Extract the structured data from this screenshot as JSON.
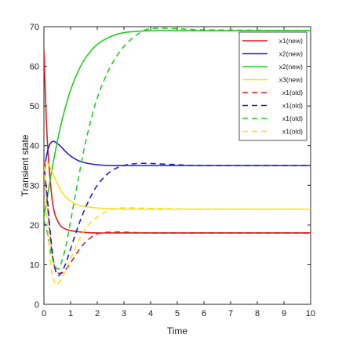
{
  "chart_data": {
    "type": "line",
    "title": "",
    "xlabel": "Time",
    "ylabel": "Transient state",
    "xlim": [
      0,
      10
    ],
    "ylim": [
      0,
      70
    ],
    "xticks": [
      "0",
      "1",
      "2",
      "3",
      "4",
      "5",
      "6",
      "7",
      "8",
      "9",
      "10"
    ],
    "yticks": [
      "0",
      "10",
      "20",
      "30",
      "40",
      "50",
      "60",
      "70"
    ],
    "grid": false,
    "legend_position": "top-right",
    "series": [
      {
        "name": "x1(new)",
        "color": "#e41a1c",
        "dash": "solid",
        "x": [
          0,
          0.1,
          0.2,
          0.3,
          0.4,
          0.6,
          0.8,
          1.0,
          1.3,
          1.6,
          2.0,
          2.5,
          3.0,
          4.0,
          6.0,
          10.0
        ],
        "y": [
          64,
          45,
          34,
          27,
          23,
          20,
          19,
          18.6,
          18.3,
          18.1,
          18.0,
          18.0,
          18.0,
          18.0,
          18.0,
          18.0
        ]
      },
      {
        "name": "x2(new)",
        "color": "#1f1fd0",
        "dash": "solid",
        "x": [
          0,
          0.1,
          0.2,
          0.3,
          0.4,
          0.6,
          0.8,
          1.0,
          1.3,
          1.6,
          2.0,
          2.5,
          3.0,
          4.0,
          6.0,
          10.0
        ],
        "y": [
          33,
          37.5,
          40,
          41,
          41,
          40,
          38.6,
          37.4,
          36.2,
          35.6,
          35.2,
          35.0,
          35.0,
          35.0,
          35.0,
          35.0
        ]
      },
      {
        "name": "x2(new)",
        "color": "#22cc22",
        "dash": "solid",
        "x": [
          0,
          0.1,
          0.2,
          0.3,
          0.5,
          0.7,
          1.0,
          1.3,
          1.6,
          2.0,
          2.5,
          3.0,
          3.5,
          4.0,
          5.0,
          10.0
        ],
        "y": [
          22,
          26,
          30,
          34,
          41,
          47,
          54,
          59,
          62.5,
          65.5,
          67.5,
          68.5,
          68.8,
          69.0,
          69.0,
          69.0
        ]
      },
      {
        "name": "x3(new)",
        "color": "#f5e11d",
        "dash": "solid",
        "x": [
          0,
          0.1,
          0.2,
          0.3,
          0.5,
          0.7,
          1.0,
          1.3,
          1.6,
          2.0,
          2.5,
          3.0,
          4.0,
          6.0,
          10.0
        ],
        "y": [
          35,
          36,
          35,
          33.5,
          30.5,
          28,
          26,
          25,
          24.6,
          24.3,
          24.1,
          24.0,
          24.0,
          24.0,
          24.0
        ]
      },
      {
        "name": "x1(old)",
        "color": "#e41a1c",
        "dash": "dashed",
        "x": [
          0,
          0.1,
          0.2,
          0.3,
          0.4,
          0.5,
          0.7,
          0.9,
          1.1,
          1.4,
          1.7,
          2.0,
          2.5,
          3.0,
          4.0,
          6.0,
          10.0
        ],
        "y": [
          36,
          28,
          20,
          13,
          9.5,
          8,
          8,
          9.5,
          11.5,
          14.5,
          16.5,
          17.8,
          18.2,
          18.2,
          18.0,
          18.0,
          18.0
        ]
      },
      {
        "name": "x1(old)",
        "color": "#1f1fd0",
        "dash": "dashed",
        "x": [
          0,
          0.1,
          0.2,
          0.3,
          0.4,
          0.5,
          0.6,
          0.8,
          1.0,
          1.3,
          1.6,
          2.0,
          2.5,
          3.0,
          3.5,
          4.0,
          5.0,
          6.0,
          10.0
        ],
        "y": [
          33,
          29,
          21,
          14,
          9.5,
          7.5,
          7.5,
          10,
          14,
          20,
          25,
          30,
          33.5,
          35,
          35.5,
          35.5,
          35.2,
          35.0,
          35.0
        ]
      },
      {
        "name": "x1(old)",
        "color": "#22cc22",
        "dash": "dashed",
        "x": [
          0,
          0.1,
          0.2,
          0.3,
          0.4,
          0.5,
          0.6,
          0.8,
          1.0,
          1.3,
          1.6,
          2.0,
          2.5,
          3.0,
          3.5,
          4.0,
          5.0,
          6.0,
          10.0
        ],
        "y": [
          21,
          19,
          15,
          12,
          10,
          9,
          9.5,
          14,
          21,
          32,
          42,
          52,
          60,
          65,
          68,
          69.5,
          69.5,
          69.2,
          69.0
        ]
      },
      {
        "name": "x1(old)",
        "color": "#f5e11d",
        "dash": "dashed",
        "x": [
          0,
          0.1,
          0.2,
          0.3,
          0.4,
          0.5,
          0.7,
          1.0,
          1.3,
          1.6,
          2.0,
          2.5,
          3.0,
          4.0,
          6.0,
          10.0
        ],
        "y": [
          35,
          24,
          14,
          8,
          5.5,
          5,
          7,
          11.5,
          16,
          19.5,
          22,
          23.8,
          24.3,
          24.2,
          24.0,
          24.0
        ]
      }
    ]
  }
}
